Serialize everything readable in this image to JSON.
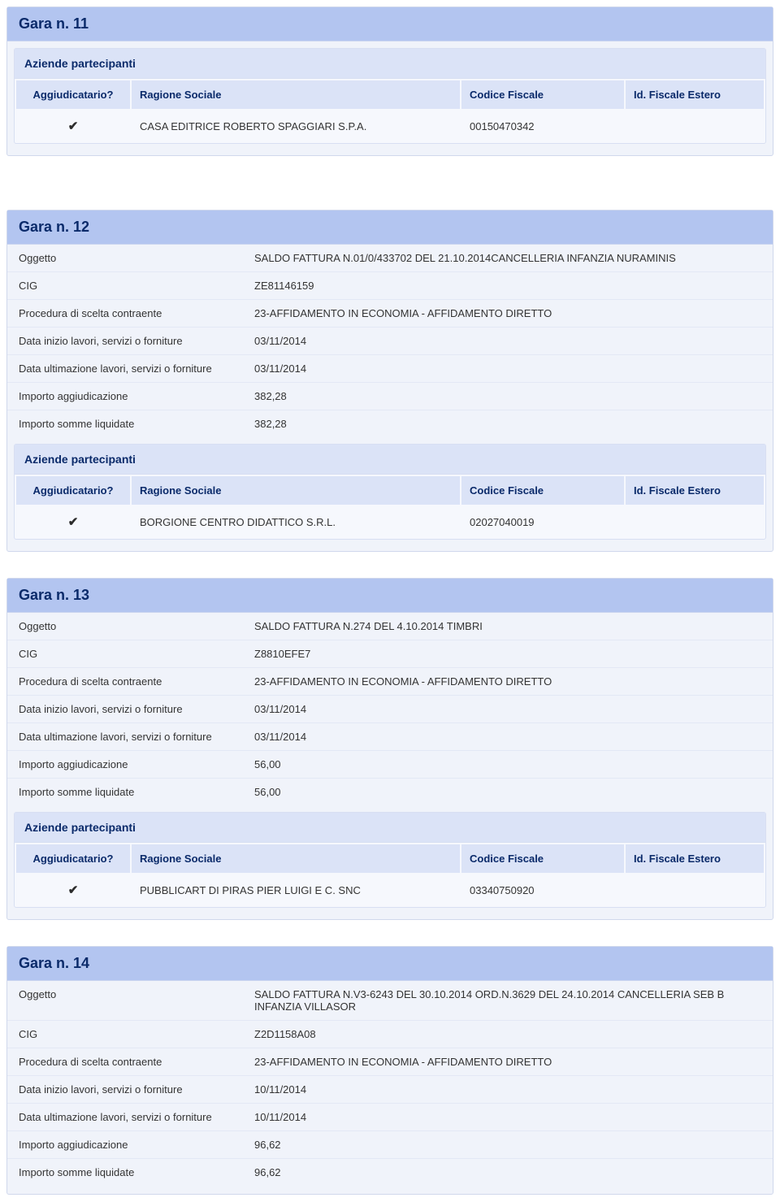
{
  "labels": {
    "oggetto": "Oggetto",
    "cig": "CIG",
    "procedura": "Procedura di scelta contraente",
    "data_inizio": "Data inizio lavori, servizi o forniture",
    "data_fine": "Data ultimazione lavori, servizi o forniture",
    "importo_agg": "Importo aggiudicazione",
    "importo_liq": "Importo somme liquidate",
    "aziende": "Aziende partecipanti",
    "col_agg": "Aggiudicatario?",
    "col_ragione": "Ragione Sociale",
    "col_cf": "Codice Fiscale",
    "col_idfe": "Id. Fiscale Estero"
  },
  "gare": [
    {
      "title": "Gara n. 11",
      "details": null,
      "participants": [
        {
          "winner": true,
          "ragione": "CASA EDITRICE ROBERTO SPAGGIARI S.P.A.",
          "cf": "00150470342",
          "idfe": ""
        }
      ],
      "spacer_after": "large"
    },
    {
      "title": "Gara n. 12",
      "details": {
        "oggetto": "SALDO FATTURA N.01/0/433702 DEL 21.10.2014CANCELLERIA INFANZIA NURAMINIS",
        "cig": "ZE81146159",
        "procedura": "23-AFFIDAMENTO IN ECONOMIA - AFFIDAMENTO DIRETTO",
        "data_inizio": "03/11/2014",
        "data_fine": "03/11/2014",
        "importo_agg": "382,28",
        "importo_liq": "382,28"
      },
      "participants": [
        {
          "winner": true,
          "ragione": "BORGIONE CENTRO DIDATTICO S.R.L.",
          "cf": "02027040019",
          "idfe": ""
        }
      ],
      "spacer_after": "small"
    },
    {
      "title": "Gara n. 13",
      "details": {
        "oggetto": "SALDO FATTURA N.274 DEL 4.10.2014 TIMBRI",
        "cig": "Z8810EFE7",
        "procedura": "23-AFFIDAMENTO IN ECONOMIA - AFFIDAMENTO DIRETTO",
        "data_inizio": "03/11/2014",
        "data_fine": "03/11/2014",
        "importo_agg": "56,00",
        "importo_liq": "56,00"
      },
      "participants": [
        {
          "winner": true,
          "ragione": "PUBBLICART DI PIRAS PIER LUIGI E C. SNC",
          "cf": "03340750920",
          "idfe": ""
        }
      ],
      "spacer_after": "small"
    },
    {
      "title": "Gara n. 14",
      "details": {
        "oggetto": "SALDO FATTURA N.V3-6243 DEL 30.10.2014 ORD.N.3629 DEL 24.10.2014 CANCELLERIA SEB B INFANZIA VILLASOR",
        "cig": "Z2D1158A08",
        "procedura": "23-AFFIDAMENTO IN ECONOMIA - AFFIDAMENTO DIRETTO",
        "data_inizio": "10/11/2014",
        "data_fine": "10/11/2014",
        "importo_agg": "96,62",
        "importo_liq": "96,62"
      },
      "participants": null,
      "spacer_after": null
    }
  ],
  "colors": {
    "panel_header_bg": "#b3c5f0",
    "panel_bg": "#f0f3fa",
    "sub_header_bg": "#dbe3f7",
    "brand_text": "#0a2a6a"
  }
}
